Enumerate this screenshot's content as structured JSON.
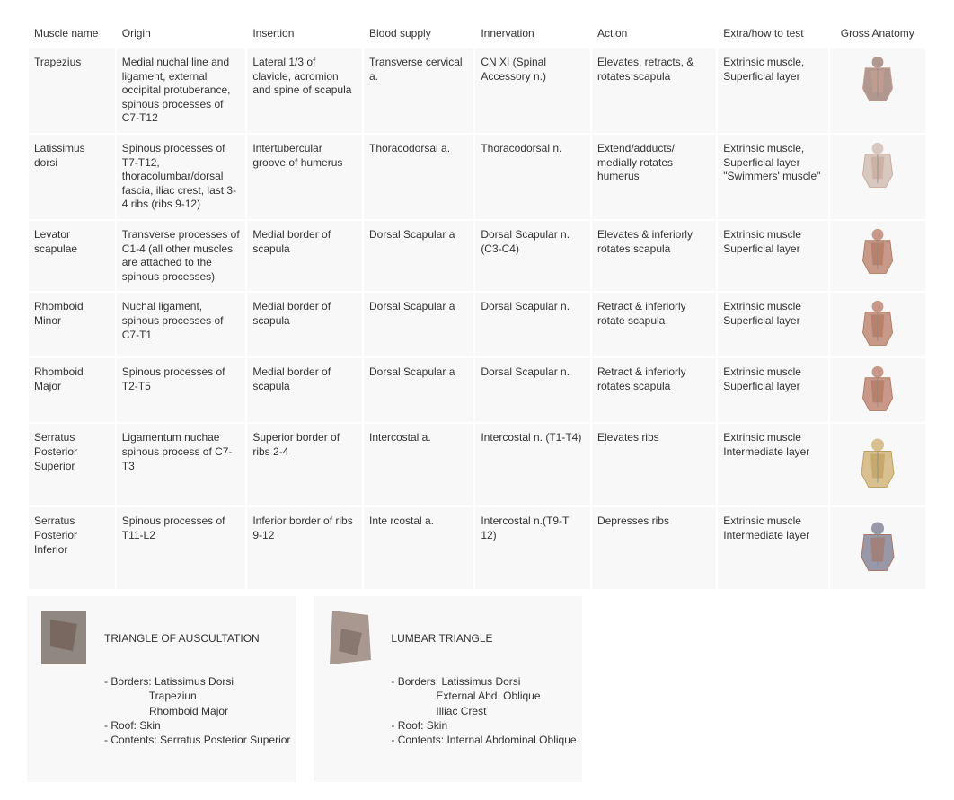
{
  "headers": [
    "Muscle name",
    "Origin",
    "Insertion",
    "Blood supply",
    "Innervation",
    "Action",
    "Extra/how to test",
    "Gross Anatomy"
  ],
  "rows": [
    {
      "muscle": "Trapezius",
      "origin": "Medial nuchal line and ligament, external occipital protuberance, spinous processes of C7-T12",
      "insertion": "Lateral 1/3 of clavicle, acromion and spine of scapula",
      "blood": "Transverse cervical a.",
      "innerv": "CN XI (Spinal Accessory n.)",
      "action": "Elevates, retracts, & rotates scapula",
      "extra": "Extrinsic muscle, Superficial layer",
      "anatomy_colors": {
        "r1": "#b09890",
        "r2": "#c8a090"
      }
    },
    {
      "muscle": "Latissimus dorsi",
      "origin": "Spinous processes of T7-T12, thoracolumbar/dorsal fascia, iliac crest, last 3-4 ribs (ribs 9-12)",
      "insertion": "Intertubercular groove of humerus",
      "blood": "Thoracodorsal a.",
      "innerv": "Thoracodorsal n.",
      "action": "Extend/adducts/ medially rotates humerus",
      "extra": "Extrinsic muscle, Superficial layer\n\"Swimmers' muscle\"",
      "anatomy_colors": {
        "r1": "#d8c8c0",
        "r2": "#c8a898"
      }
    },
    {
      "muscle": "Levator scapulae",
      "origin": "Transverse processes of C1-4 (all other muscles are attached to the spinous processes)",
      "insertion": "Medial border of scapula",
      "blood": "Dorsal Scapular a",
      "innerv": "Dorsal Scapular n. (C3-C4)",
      "action": "Elevates & inferiorly rotates scapula",
      "extra": "Extrinsic muscle Superficial layer",
      "anatomy_colors": {
        "r1": "#c89888",
        "r2": "#b07860"
      }
    },
    {
      "muscle": "Rhomboid Minor",
      "origin": "Nuchal ligament, spinous processes of C7-T1",
      "insertion": "Medial border of scapula",
      "blood": "Dorsal Scapular a",
      "innerv": "Dorsal Scapular n.",
      "action": "Retract & inferiorly rotate scapula",
      "extra": "Extrinsic muscle Superficial layer",
      "anatomy_colors": {
        "r1": "#c89888",
        "r2": "#b07860"
      }
    },
    {
      "muscle": "Rhomboid Major",
      "origin": "Spinous processes of T2-T5",
      "insertion": "Medial border of scapula",
      "blood": "Dorsal Scapular a",
      "innerv": "Dorsal Scapular n.",
      "action": "Retract & inferiorly rotates scapula",
      "extra": "Extrinsic muscle Superficial layer",
      "anatomy_colors": {
        "r1": "#c89888",
        "r2": "#b07860"
      }
    },
    {
      "muscle": "Serratus Posterior Superior",
      "origin": "Ligamentum nuchae spinous process of C7-T3",
      "insertion": "Superior border of ribs 2-4",
      "blood": "Intercostal a.",
      "innerv": "Intercostal n. (T1-T4)",
      "action": "Elevates ribs",
      "extra": "Extrinsic muscle Intermediate layer",
      "anatomy_colors": {
        "r1": "#d8c090",
        "r2": "#c0a060"
      }
    },
    {
      "muscle": "Serratus Posterior Inferior",
      "origin": "Spinous processes of T11-L2",
      "insertion": "Inferior border of ribs 9-12",
      "blood": "Inte rcostal a.",
      "innerv": "Intercostal n.(T9-T 12)",
      "action": "Depresses ribs",
      "extra": "Extrinsic muscle Intermediate layer",
      "anatomy_colors": {
        "r1": "#9898a8",
        "r2": "#a87868"
      }
    }
  ],
  "note1": {
    "title": "TRIANGLE OF AUSCULTATION",
    "text": "- Borders: Latissimus Dorsi\n               Trapeziun\n               Rhomboid Major\n- Roof: Skin\n- Contents: Serratus Posterior Superior",
    "colors": {
      "a": "#908880",
      "b": "#786860"
    }
  },
  "note2": {
    "title": "LUMBAR TRIANGLE",
    "text": "- Borders: Latissimus Dorsi\n               External Abd. Oblique\n               Illiac Crest\n- Roof: Skin\n- Contents: Internal Abdominal Oblique",
    "colors": {
      "a": "#a89890",
      "b": "#887870"
    }
  },
  "headerClasses": [
    "col-muscle",
    "col-origin",
    "col-insertion",
    "col-blood",
    "col-innerv",
    "col-action",
    "col-extra",
    "col-anatomy"
  ]
}
